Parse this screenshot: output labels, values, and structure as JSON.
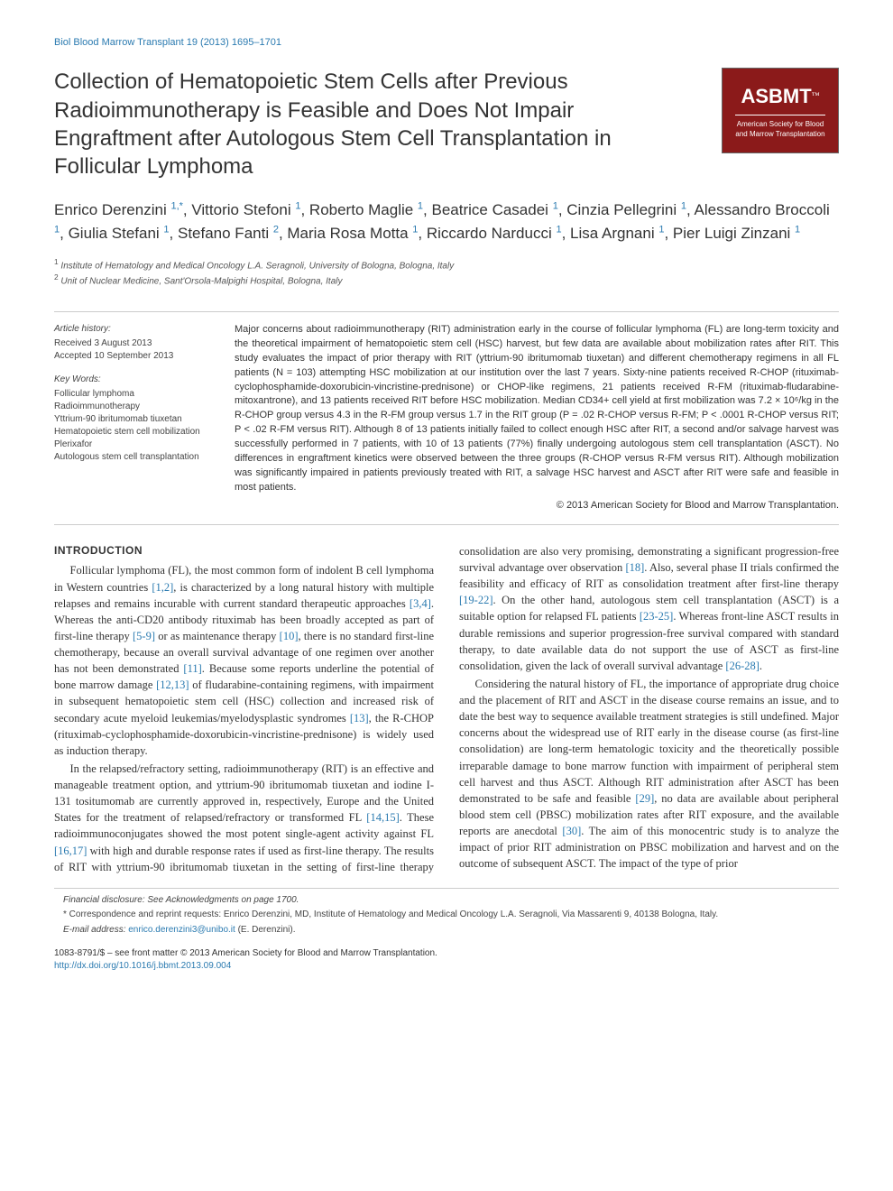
{
  "journal_header": "Biol Blood Marrow Transplant 19 (2013) 1695–1701",
  "title": "Collection of Hematopoietic Stem Cells after Previous Radioimmunotherapy is Feasible and Does Not Impair Engraftment after Autologous Stem Cell Transplantation in Follicular Lymphoma",
  "logo": {
    "main": "ASBMT",
    "tm": "™",
    "line1": "American Society for Blood",
    "line2": "and Marrow Transplantation",
    "bg_color": "#8b1a1a",
    "fg_color": "#ffffff"
  },
  "authors_html": "Enrico Derenzini <sup>1,*</sup>, Vittorio Stefoni <sup>1</sup>, Roberto Maglie <sup>1</sup>, Beatrice Casadei <sup>1</sup>, Cinzia Pellegrini <sup>1</sup>, Alessandro Broccoli <sup>1</sup>, Giulia Stefani <sup>1</sup>, Stefano Fanti <sup>2</sup>, Maria Rosa Motta <sup>1</sup>, Riccardo Narducci <sup>1</sup>, Lisa Argnani <sup>1</sup>, Pier Luigi Zinzani <sup>1</sup>",
  "affiliations": [
    "Institute of Hematology and Medical Oncology L.A. Seragnoli, University of Bologna, Bologna, Italy",
    "Unit of Nuclear Medicine, Sant'Orsola-Malpighi Hospital, Bologna, Italy"
  ],
  "article_history": {
    "heading": "Article history:",
    "received": "Received 3 August 2013",
    "accepted": "Accepted 10 September 2013"
  },
  "keywords": {
    "heading": "Key Words:",
    "items": [
      "Follicular lymphoma",
      "Radioimmunotherapy",
      "Yttrium-90 ibritumomab tiuxetan",
      "Hematopoietic stem cell mobilization",
      "Plerixafor",
      "Autologous stem cell transplantation"
    ]
  },
  "abstract": "Major concerns about radioimmunotherapy (RIT) administration early in the course of follicular lymphoma (FL) are long-term toxicity and the theoretical impairment of hematopoietic stem cell (HSC) harvest, but few data are available about mobilization rates after RIT. This study evaluates the impact of prior therapy with RIT (yttrium-90 ibritumomab tiuxetan) and different chemotherapy regimens in all FL patients (N = 103) attempting HSC mobilization at our institution over the last 7 years. Sixty-nine patients received R-CHOP (rituximab-cyclophosphamide-doxorubicin-vincristine-prednisone) or CHOP-like regimens, 21 patients received R-FM (rituximab-fludarabine-mitoxantrone), and 13 patients received RIT before HSC mobilization. Median CD34+ cell yield at first mobilization was 7.2 × 10⁶/kg in the R-CHOP group versus 4.3 in the R-FM group versus 1.7 in the RIT group (P = .02 R-CHOP versus R-FM; P < .0001 R-CHOP versus RIT; P < .02 R-FM versus RIT). Although 8 of 13 patients initially failed to collect enough HSC after RIT, a second and/or salvage harvest was successfully performed in 7 patients, with 10 of 13 patients (77%) finally undergoing autologous stem cell transplantation (ASCT). No differences in engraftment kinetics were observed between the three groups (R-CHOP versus R-FM versus RIT). Although mobilization was significantly impaired in patients previously treated with RIT, a salvage HSC harvest and ASCT after RIT were safe and feasible in most patients.",
  "abstract_copyright": "© 2013 American Society for Blood and Marrow Transplantation.",
  "intro_heading": "INTRODUCTION",
  "intro_paragraphs": [
    "Follicular lymphoma (FL), the most common form of indolent B cell lymphoma in Western countries <span class=\"ref-link\">[1,2]</span>, is characterized by a long natural history with multiple relapses and remains incurable with current standard therapeutic approaches <span class=\"ref-link\">[3,4]</span>. Whereas the anti-CD20 antibody rituximab has been broadly accepted as part of first-line therapy <span class=\"ref-link\">[5-9]</span> or as maintenance therapy <span class=\"ref-link\">[10]</span>, there is no standard first-line chemotherapy, because an overall survival advantage of one regimen over another has not been demonstrated <span class=\"ref-link\">[11]</span>. Because some reports underline the potential of bone marrow damage <span class=\"ref-link\">[12,13]</span> of fludarabine-containing regimens, with impairment in subsequent hematopoietic stem cell (HSC) collection and increased risk of secondary acute myeloid leukemias/myelodysplastic syndromes <span class=\"ref-link\">[13]</span>, the R-CHOP (rituximab-cyclophosphamide-doxorubicin-vincristine-prednisone) is widely used as induction therapy.",
    "In the relapsed/refractory setting, radioimmunotherapy (RIT) is an effective and manageable treatment option, and yttrium-90 ibritumomab tiuxetan and iodine I-131 tositumomab are currently approved in, respectively, Europe and the United States for the treatment of relapsed/refractory or transformed FL <span class=\"ref-link\">[14,15]</span>. These radioimmunoconjugates showed the most potent single-agent activity against FL <span class=\"ref-link\">[16,17]</span> with high and durable response rates if used as first-line therapy. The results of RIT with yttrium-90 ibritumomab tiuxetan in the setting of first-line therapy consolidation are also very promising, demonstrating a significant progression-free survival advantage over observation <span class=\"ref-link\">[18]</span>. Also, several phase II trials confirmed the feasibility and efficacy of RIT as consolidation treatment after first-line therapy <span class=\"ref-link\">[19-22]</span>. On the other hand, autologous stem cell transplantation (ASCT) is a suitable option for relapsed FL patients <span class=\"ref-link\">[23-25]</span>. Whereas front-line ASCT results in durable remissions and superior progression-free survival compared with standard therapy, to date available data do not support the use of ASCT as first-line consolidation, given the lack of overall survival advantage <span class=\"ref-link\">[26-28]</span>.",
    "Considering the natural history of FL, the importance of appropriate drug choice and the placement of RIT and ASCT in the disease course remains an issue, and to date the best way to sequence available treatment strategies is still undefined. Major concerns about the widespread use of RIT early in the disease course (as first-line consolidation) are long-term hematologic toxicity and the theoretically possible irreparable damage to bone marrow function with impairment of peripheral stem cell harvest and thus ASCT. Although RIT administration after ASCT has been demonstrated to be safe and feasible <span class=\"ref-link\">[29]</span>, no data are available about peripheral blood stem cell (PBSC) mobilization rates after RIT exposure, and the available reports are anecdotal <span class=\"ref-link\">[30]</span>. The aim of this monocentric study is to analyze the impact of prior RIT administration on PBSC mobilization and harvest and on the outcome of subsequent ASCT. The impact of the type of prior"
  ],
  "footnotes": {
    "disclosure": "Financial disclosure: See Acknowledgments on page 1700.",
    "correspondence": "* Correspondence and reprint requests: Enrico Derenzini, MD, Institute of Hematology and Medical Oncology L.A. Seragnoli, Via Massarenti 9, 40138 Bologna, Italy.",
    "email_label": "E-mail address: ",
    "email": "enrico.derenzini3@unibo.it",
    "email_suffix": " (E. Derenzini)."
  },
  "footer": {
    "front_matter": "1083-8791/$ – see front matter © 2013 American Society for Blood and Marrow Transplantation.",
    "doi": "http://dx.doi.org/10.1016/j.bbmt.2013.09.004"
  },
  "colors": {
    "link_color": "#2a7ab0",
    "text_color": "#333333",
    "rule_color": "#cccccc",
    "logo_bg": "#8b1a1a"
  }
}
